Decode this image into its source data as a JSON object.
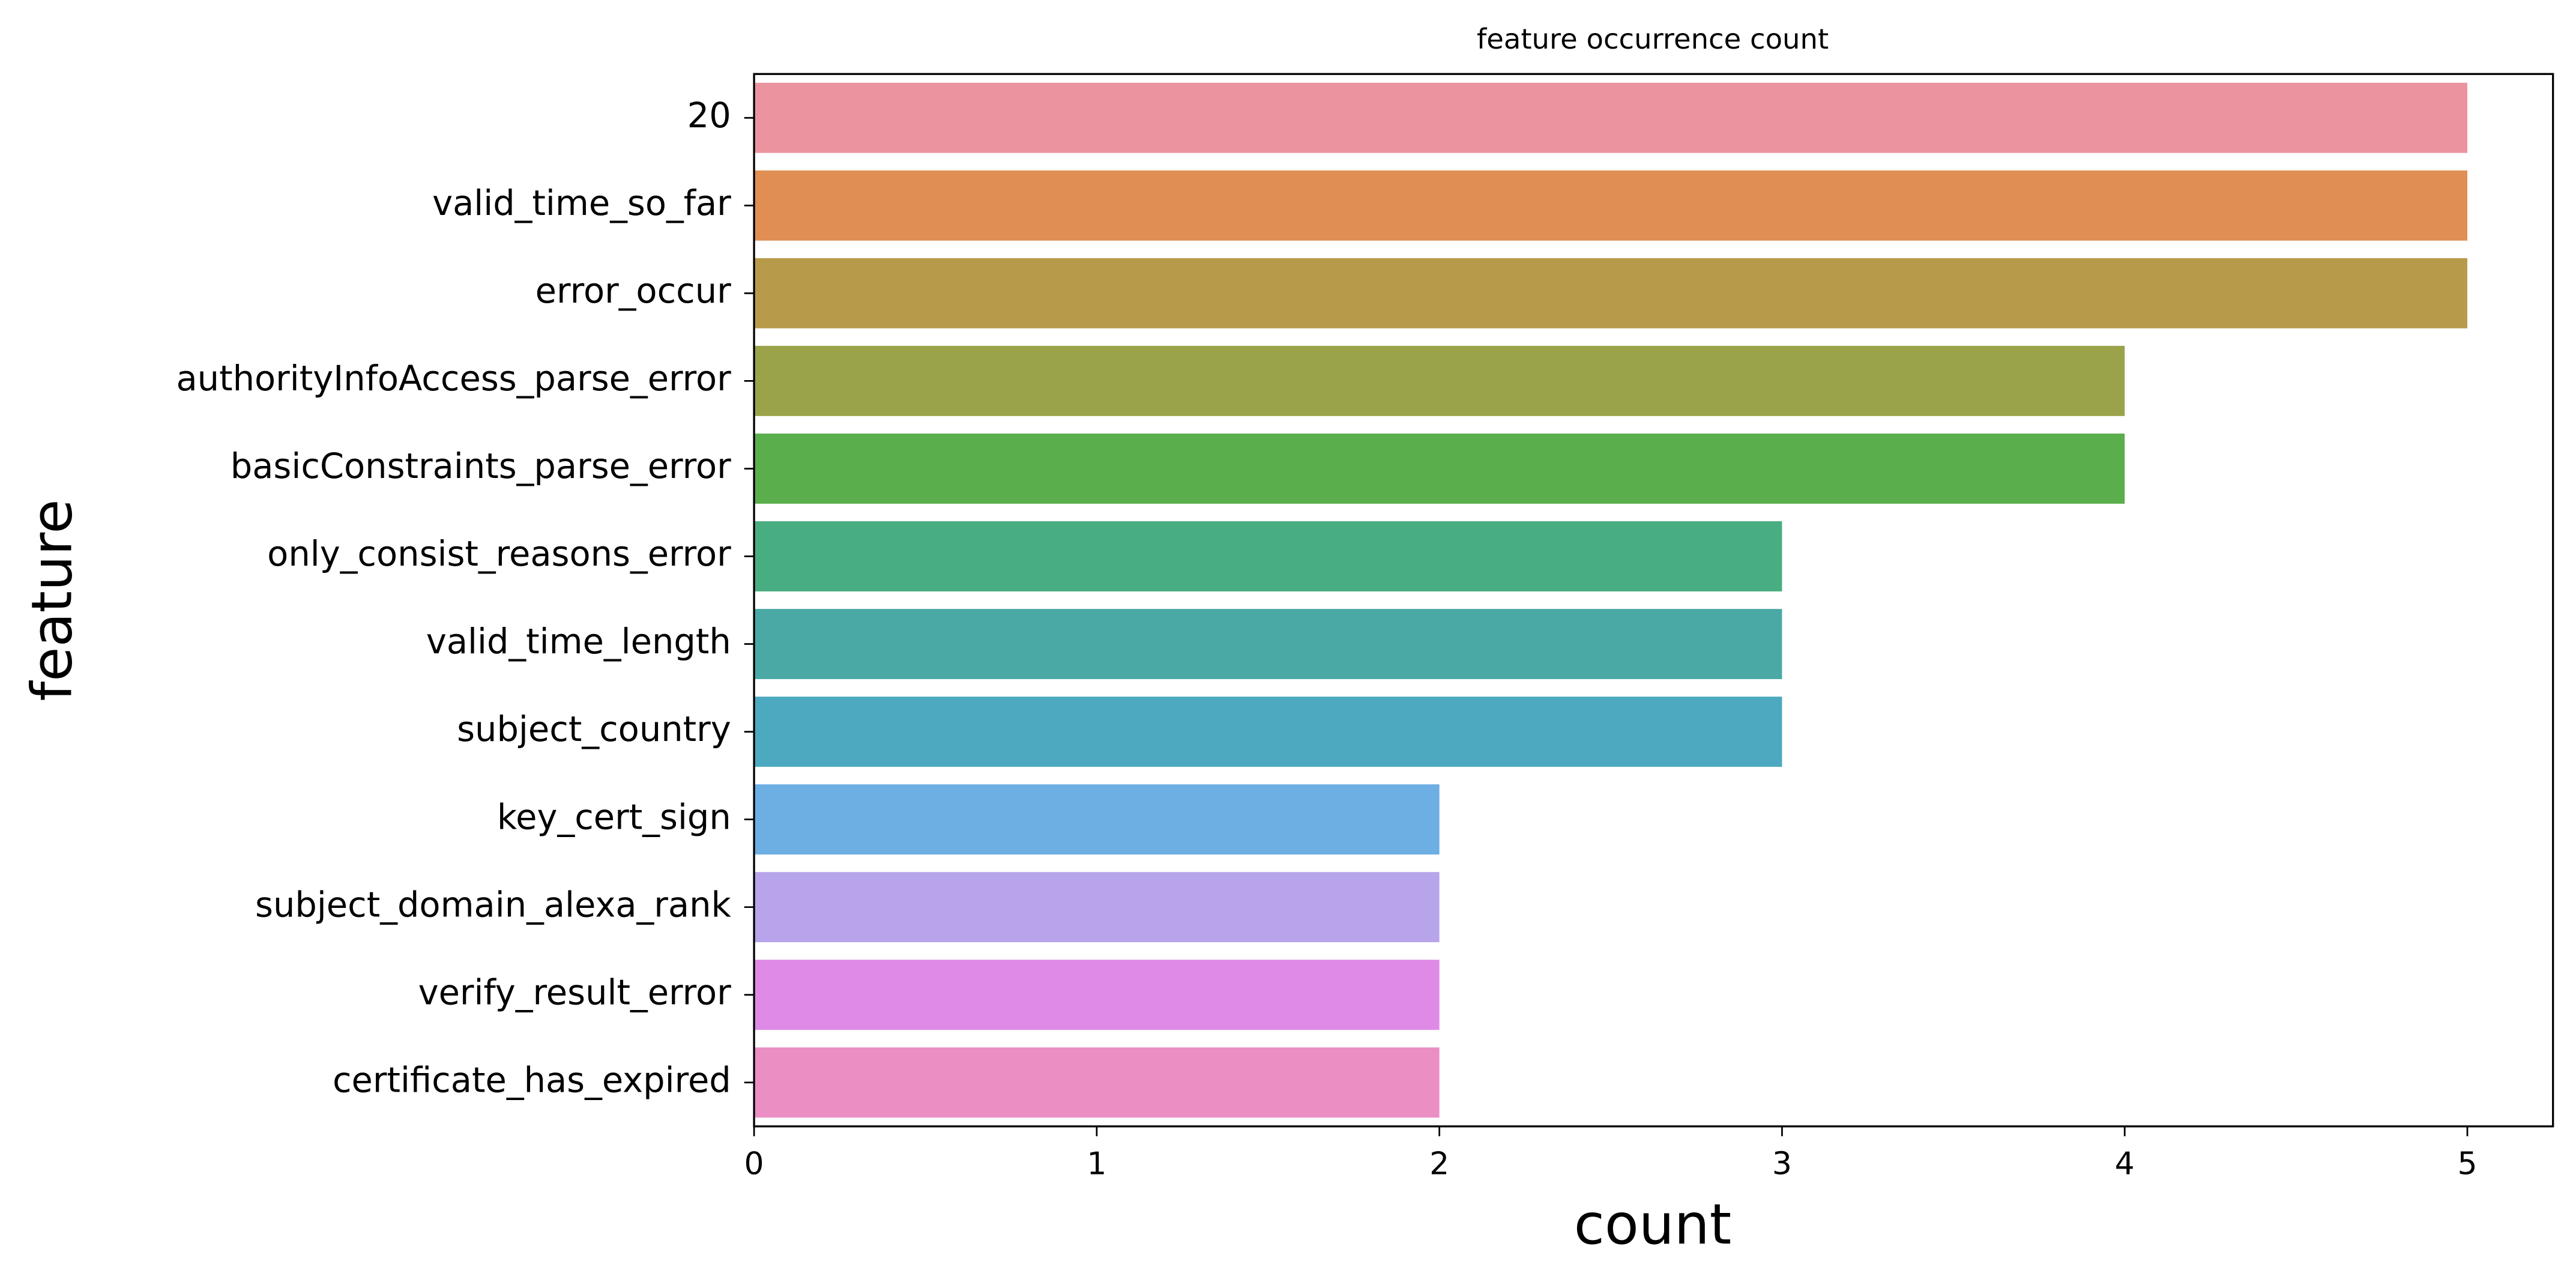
{
  "chart_data": {
    "type": "barh",
    "title": "feature occurrence count",
    "xlabel": "count",
    "ylabel": "feature",
    "categories": [
      "20",
      "valid_time_so_far",
      "error_occur",
      "authorityInfoAccess_parse_error",
      "basicConstraints_parse_error",
      "only_consist_reasons_error",
      "valid_time_length",
      "subject_country",
      "key_cert_sign",
      "subject_domain_alexa_rank",
      "verify_result_error",
      "certificate_has_expired"
    ],
    "values": [
      5,
      5,
      5,
      4,
      4,
      3,
      3,
      3,
      2,
      2,
      2,
      2
    ],
    "colors": [
      "#eb949f",
      "#e08e53",
      "#b89b4a",
      "#9aa349",
      "#5aae4c",
      "#49ad82",
      "#4aa9a5",
      "#4ca9c0",
      "#6daee3",
      "#b7a4ea",
      "#df8ae6",
      "#ea8ec4"
    ],
    "xlim": [
      0,
      5.25
    ],
    "xticks": [
      0,
      1,
      2,
      3,
      4,
      5
    ]
  }
}
